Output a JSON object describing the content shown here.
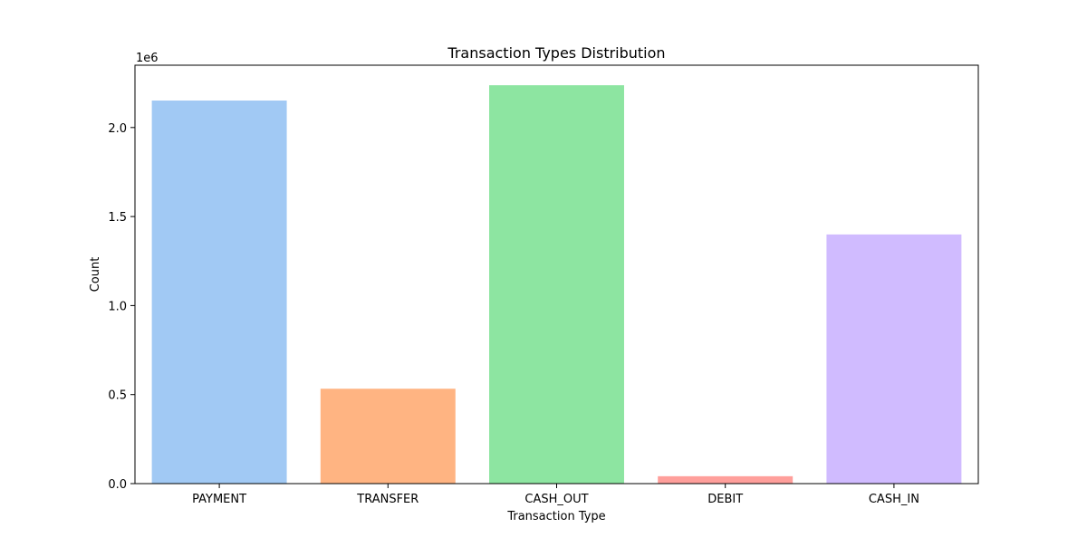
{
  "chart_data": {
    "type": "bar",
    "title": "Transaction Types Distribution",
    "xlabel": "Transaction Type",
    "ylabel": "Count",
    "offset_label": "1e6",
    "categories": [
      "PAYMENT",
      "TRANSFER",
      "CASH_OUT",
      "DEBIT",
      "CASH_IN"
    ],
    "values": [
      2151495,
      532909,
      2237500,
      41432,
      1399284
    ],
    "colors": [
      "#a1c9f4",
      "#ffb482",
      "#8de5a1",
      "#ff9f9b",
      "#d0bbff"
    ],
    "ylim": [
      0,
      2350000
    ],
    "yticks": [
      0,
      500000,
      1000000,
      1500000,
      2000000
    ],
    "ytick_labels": [
      "0.0",
      "0.5",
      "1.0",
      "1.5",
      "2.0"
    ],
    "grid": false,
    "legend": "none"
  }
}
